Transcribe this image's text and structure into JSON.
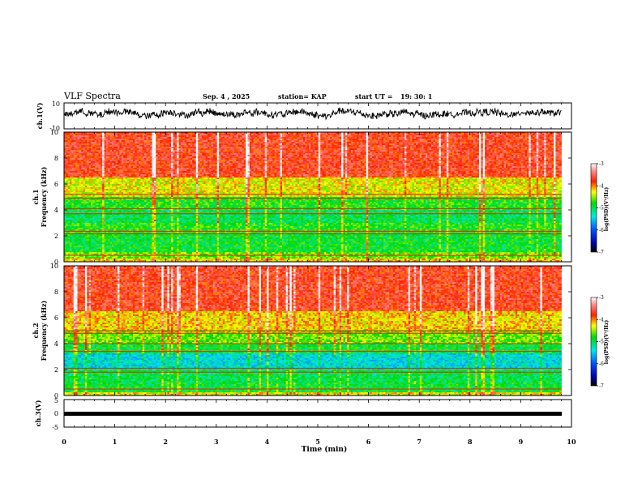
{
  "header": {
    "title": "VLF Spectra",
    "date": "Sep. 4 , 2025",
    "station": "station= KAP",
    "start": "start UT =",
    "start_time": "19: 30: 1"
  },
  "chart_data": [
    {
      "type": "line",
      "id": "ch1-waveform",
      "ylabel": "ch.1(V)",
      "ylim": [
        -10,
        10
      ],
      "ytick_labels": [
        "10",
        "-10"
      ],
      "xlim": [
        0,
        10
      ],
      "line_color": "#000000",
      "description_values": "noisy waveform centred near 2 V, swinging roughly between -2 and 10 V over 0-9.8 min"
    },
    {
      "type": "heatmap",
      "id": "ch1-spectrogram",
      "ylabel": "ch.1\nFrequency (kHz)",
      "ylabel_lines": [
        "ch.1",
        "Frequency (kHz)"
      ],
      "ylim": [
        0,
        10
      ],
      "ytick_labels": [
        "0",
        "2",
        "4",
        "6",
        "8",
        "10"
      ],
      "xlim": [
        0,
        10
      ],
      "data_xmax": 9.8,
      "bands": [
        {
          "from": 0,
          "to": 0.3,
          "level": -4.2
        },
        {
          "from": 0.3,
          "to": 0.8,
          "level": -4.6
        },
        {
          "from": 0.8,
          "to": 2.2,
          "level": -4.9
        },
        {
          "from": 2.2,
          "to": 3.0,
          "level": -4.8
        },
        {
          "from": 3.0,
          "to": 4.0,
          "level": -5.0
        },
        {
          "from": 4.0,
          "to": 5.0,
          "level": -4.8
        },
        {
          "from": 5.0,
          "to": 6.5,
          "level": -4.3
        },
        {
          "from": 6.5,
          "to": 10.0,
          "level": -3.7
        }
      ],
      "lines_khz": [
        0.5,
        2.15,
        2.35,
        3.7,
        4.1,
        4.9,
        5.2
      ],
      "colorbar": {
        "label": "log(PSD)(V²/Hz)",
        "range": [
          -7,
          -3
        ],
        "tick_labels": [
          "-3",
          "-4",
          "-5",
          "-6",
          "-7"
        ]
      }
    },
    {
      "type": "heatmap",
      "id": "ch2-spectrogram",
      "ylabel": "ch.2\nFrequency (kHz)",
      "ylabel_lines": [
        "ch.2",
        "Frequency (kHz)"
      ],
      "ylim": [
        0,
        10
      ],
      "ytick_labels": [
        "0",
        "2",
        "4",
        "6",
        "8",
        "10"
      ],
      "xlim": [
        0,
        10
      ],
      "data_xmax": 9.8,
      "bands": [
        {
          "from": 0,
          "to": 0.3,
          "level": -4.3
        },
        {
          "from": 0.3,
          "to": 1.0,
          "level": -4.9
        },
        {
          "from": 1.0,
          "to": 2.0,
          "level": -5.0
        },
        {
          "from": 2.0,
          "to": 3.3,
          "level": -5.4
        },
        {
          "from": 3.3,
          "to": 4.0,
          "level": -4.9
        },
        {
          "from": 4.0,
          "to": 5.0,
          "level": -4.6
        },
        {
          "from": 5.0,
          "to": 6.5,
          "level": -4.2
        },
        {
          "from": 6.5,
          "to": 10.0,
          "level": -3.7
        }
      ],
      "lines_khz": [
        0.5,
        1.8,
        2.1,
        3.4,
        4.0,
        4.8,
        5.0
      ],
      "colorbar": {
        "label": "log(PSD)(V²/Hz)",
        "range": [
          -7,
          -3
        ],
        "tick_labels": [
          "-3",
          "-4",
          "-5",
          "-6",
          "-7"
        ]
      }
    },
    {
      "type": "line",
      "id": "ch3-waveform",
      "ylabel": "ch.3(V)",
      "ylim": [
        -5,
        5
      ],
      "ytick_labels": [
        "5",
        "0",
        "-5"
      ],
      "xlim": [
        0,
        10
      ],
      "level_v": 0,
      "line_color": "#000000"
    }
  ],
  "xaxis": {
    "label": "Time (min)",
    "range": [
      0,
      10
    ],
    "tick_labels": [
      "0",
      "1",
      "2",
      "3",
      "4",
      "5",
      "6",
      "7",
      "8",
      "9",
      "10"
    ]
  }
}
